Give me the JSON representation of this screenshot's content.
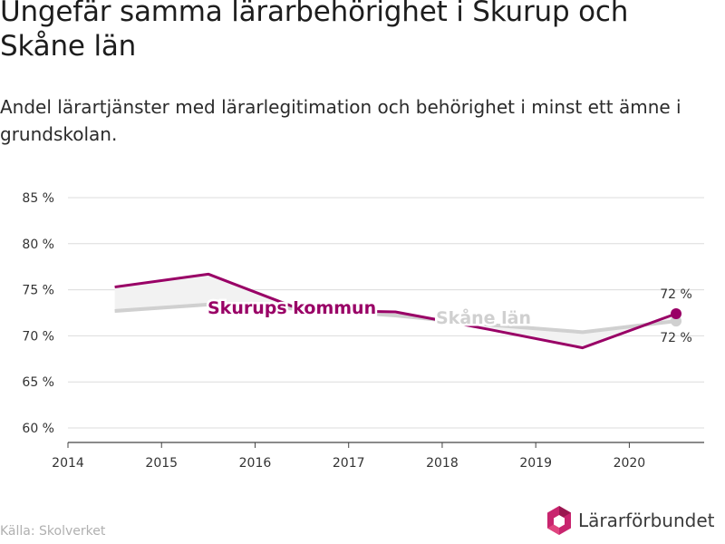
{
  "title": "Ungefär samma lärarbehörighet i Skurup och Skåne län",
  "subtitle": "Andel lärartjänster med lärarlegitimation och behörighet i minst ett ämne i grundskolan.",
  "source": "Källa: Skolverket",
  "logo_text": "Lärarförbundet",
  "colors": {
    "skurup": "#990066",
    "skane": "#d0d0d0",
    "fill": "#f2f2f2",
    "grid": "#dcdcdc"
  },
  "chart_data": {
    "type": "line",
    "x_ticks": [
      "2014",
      "2015",
      "2016",
      "2017",
      "2018",
      "2019",
      "2020"
    ],
    "y_ticks": [
      "60 %",
      "65 %",
      "70 %",
      "75 %",
      "80 %",
      "85 %"
    ],
    "xlim": [
      2014,
      2020.8
    ],
    "ylim": [
      59,
      85
    ],
    "series": [
      {
        "name": "Skurups kommun",
        "x": [
          2014.5,
          2015.5,
          2016.5,
          2017.5,
          2018.5,
          2019.5,
          2020.5
        ],
        "values": [
          75.3,
          76.7,
          72.8,
          72.6,
          70.7,
          68.7,
          72.4
        ],
        "end_label": "72 %"
      },
      {
        "name": "Skåne län",
        "x": [
          2014.5,
          2015.5,
          2016.5,
          2017.5,
          2018.5,
          2019.5,
          2020.5
        ],
        "values": [
          72.7,
          73.4,
          72.9,
          72.2,
          71.2,
          70.4,
          71.6
        ],
        "end_label": "72 %"
      }
    ]
  }
}
